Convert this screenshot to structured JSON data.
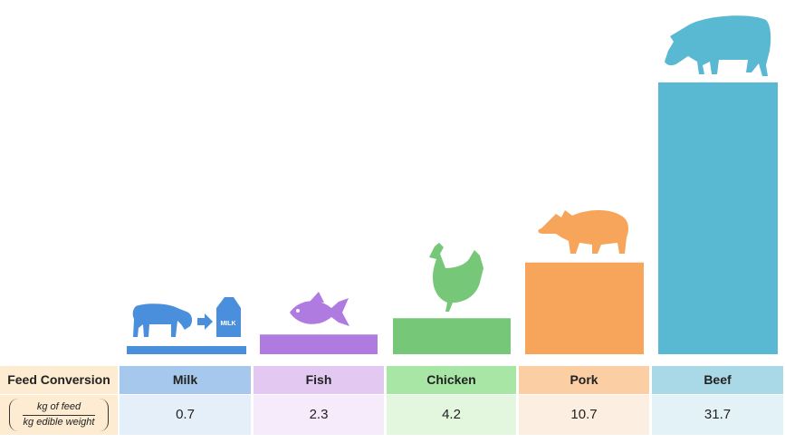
{
  "chart_data": {
    "type": "bar",
    "categories": [
      "Milk",
      "Fish",
      "Chicken",
      "Pork",
      "Beef"
    ],
    "values": [
      0.7,
      2.3,
      4.2,
      10.7,
      31.7
    ],
    "title": "",
    "xlabel": "",
    "ylabel": "",
    "ylim": [
      0,
      31.7
    ],
    "grid": false,
    "legend": "none",
    "colors": {
      "bars": [
        "#4a8fdc",
        "#b07be0",
        "#76c777",
        "#f6a55a",
        "#59b8d2"
      ],
      "header_cells": [
        "#a6c8ec",
        "#e3c9f2",
        "#a8e6a6",
        "#fbcfa3",
        "#a9d8e6"
      ],
      "value_cells": [
        "#e5effa",
        "#f5ebfa",
        "#e2f7de",
        "#fdeee2",
        "#e3f2f7"
      ],
      "label_cell": "#fdebd2"
    },
    "icons": [
      "cow-to-milk-carton-icon",
      "fish-icon",
      "chicken-icon",
      "pig-icon",
      "cow-icon"
    ]
  },
  "table": {
    "metric_title": "Feed Conversion",
    "fraction_numerator": "kg of feed",
    "fraction_denominator": "kg edible weight",
    "milk_carton_label": "MILK",
    "headers": [
      "Milk",
      "Fish",
      "Chicken",
      "Pork",
      "Beef"
    ],
    "values": [
      "0.7",
      "2.3",
      "4.2",
      "10.7",
      "31.7"
    ]
  }
}
